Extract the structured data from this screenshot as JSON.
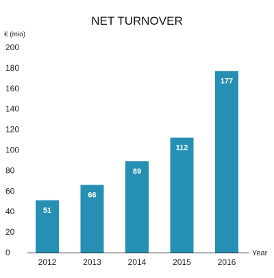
{
  "chart_data": {
    "type": "bar",
    "title": "NET TURNOVER",
    "ylabel": "€ (mio)",
    "xlabel": "Year",
    "categories": [
      "2012",
      "2013",
      "2014",
      "2015",
      "2016"
    ],
    "values": [
      51,
      66,
      89,
      112,
      177
    ],
    "ylim": [
      0,
      200
    ],
    "yticks": [
      0,
      20,
      40,
      60,
      80,
      100,
      120,
      140,
      160,
      180,
      200
    ],
    "data_labels": true,
    "grid": false,
    "legend": "none",
    "bar_color": "#2590b3"
  }
}
